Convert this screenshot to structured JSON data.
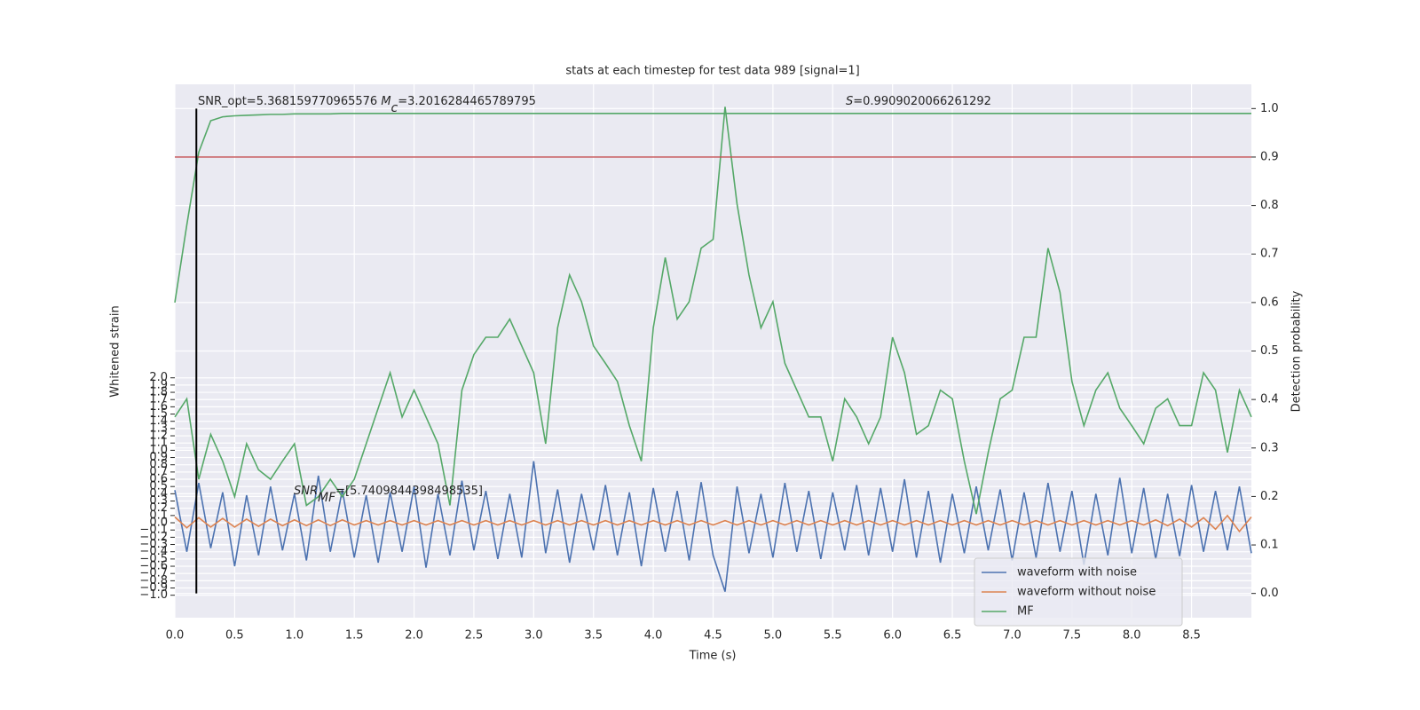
{
  "chart_data": {
    "type": "line",
    "title": "stats at each timestep for test data 989 [signal=1]",
    "x_label": "Time (s)",
    "y_label": "Whitened strain",
    "y2_label": "Detection probability",
    "grid": true,
    "legend": "lower right",
    "xlim": [
      0,
      9.0
    ],
    "ylim": [
      -1.31,
      6.05
    ],
    "y2lim": [
      -0.05,
      1.05
    ],
    "xticks": [
      {
        "value": 0,
        "label": "0.0"
      },
      {
        "value": 0.5,
        "label": "0.5"
      },
      {
        "value": 1,
        "label": "1.0"
      },
      {
        "value": 1.5,
        "label": "1.5"
      },
      {
        "value": 2,
        "label": "2.0"
      },
      {
        "value": 2.5,
        "label": "2.5"
      },
      {
        "value": 3,
        "label": "3.0"
      },
      {
        "value": 3.5,
        "label": "3.5"
      },
      {
        "value": 4,
        "label": "4.0"
      },
      {
        "value": 4.5,
        "label": "4.5"
      },
      {
        "value": 5,
        "label": "5.0"
      },
      {
        "value": 5.5,
        "label": "5.5"
      },
      {
        "value": 6,
        "label": "6.0"
      },
      {
        "value": 6.5,
        "label": "6.5"
      },
      {
        "value": 7,
        "label": "7.0"
      },
      {
        "value": 7.5,
        "label": "7.5"
      },
      {
        "value": 8,
        "label": "8.0"
      },
      {
        "value": 8.5,
        "label": "8.5"
      }
    ],
    "yticks": [
      {
        "value": -1,
        "label": "−1.0"
      },
      {
        "value": -0.9,
        "label": "−0.9"
      },
      {
        "value": -0.8,
        "label": "−0.8"
      },
      {
        "value": -0.7,
        "label": "−0.7"
      },
      {
        "value": -0.6,
        "label": "−0.6"
      },
      {
        "value": -0.5,
        "label": "−0.5"
      },
      {
        "value": -0.4,
        "label": "−0.4"
      },
      {
        "value": -0.3,
        "label": "−0.3"
      },
      {
        "value": -0.2,
        "label": "−0.2"
      },
      {
        "value": -0.1,
        "label": "−0.1"
      },
      {
        "value": 0,
        "label": "0.0"
      },
      {
        "value": 0.1,
        "label": "0.1"
      },
      {
        "value": 0.2,
        "label": "0.2"
      },
      {
        "value": 0.3,
        "label": "0.3"
      },
      {
        "value": 0.4,
        "label": "0.4"
      },
      {
        "value": 0.5,
        "label": "0.5"
      },
      {
        "value": 0.6,
        "label": "0.6"
      },
      {
        "value": 0.7,
        "label": "0.7"
      },
      {
        "value": 0.8,
        "label": "0.8"
      },
      {
        "value": 0.9,
        "label": "0.9"
      },
      {
        "value": 1,
        "label": "1.0"
      },
      {
        "value": 1.1,
        "label": "1.1"
      },
      {
        "value": 1.2,
        "label": "1.2"
      },
      {
        "value": 1.3,
        "label": "1.3"
      },
      {
        "value": 1.4,
        "label": "1.4"
      },
      {
        "value": 1.5,
        "label": "1.5"
      },
      {
        "value": 1.6,
        "label": "1.6"
      },
      {
        "value": 1.7,
        "label": "1.7"
      },
      {
        "value": 1.8,
        "label": "1.8"
      },
      {
        "value": 1.9,
        "label": "1.9"
      },
      {
        "value": 2,
        "label": "2.0"
      }
    ],
    "y2ticks": [
      {
        "value": 0,
        "label": "0.0"
      },
      {
        "value": 0.1,
        "label": "0.1"
      },
      {
        "value": 0.2,
        "label": "0.2"
      },
      {
        "value": 0.3,
        "label": "0.3"
      },
      {
        "value": 0.4,
        "label": "0.4"
      },
      {
        "value": 0.5,
        "label": "0.5"
      },
      {
        "value": 0.6,
        "label": "0.6"
      },
      {
        "value": 0.7,
        "label": "0.7"
      },
      {
        "value": 0.8,
        "label": "0.8"
      },
      {
        "value": 0.9,
        "label": "0.9"
      },
      {
        "value": 1,
        "label": "1.0"
      }
    ],
    "x": [
      0.0,
      0.1,
      0.2,
      0.3,
      0.4,
      0.5,
      0.6,
      0.7,
      0.8,
      0.9,
      1.0,
      1.1,
      1.2,
      1.3,
      1.4,
      1.5,
      1.6,
      1.7,
      1.8,
      1.9,
      2.0,
      2.1,
      2.2,
      2.3,
      2.4,
      2.5,
      2.6,
      2.7,
      2.8,
      2.9,
      3.0,
      3.1,
      3.2,
      3.3,
      3.4,
      3.5,
      3.6,
      3.7,
      3.8,
      3.9,
      4.0,
      4.1,
      4.2,
      4.3,
      4.4,
      4.5,
      4.6,
      4.7,
      4.8,
      4.9,
      5.0,
      5.1,
      5.2,
      5.3,
      5.4,
      5.5,
      5.6,
      5.7,
      5.8,
      5.9,
      6.0,
      6.1,
      6.2,
      6.3,
      6.4,
      6.5,
      6.6,
      6.7,
      6.8,
      6.9,
      7.0,
      7.1,
      7.2,
      7.3,
      7.4,
      7.5,
      7.6,
      7.7,
      7.8,
      7.9,
      8.0,
      8.1,
      8.2,
      8.3,
      8.4,
      8.5,
      8.6,
      8.7,
      8.8,
      8.9,
      9.0
    ],
    "series": [
      {
        "name": "waveform with noise",
        "color": "#4c72b0",
        "values": [
          0.45,
          -0.4,
          0.55,
          -0.35,
          0.42,
          -0.6,
          0.38,
          -0.45,
          0.5,
          -0.38,
          0.4,
          -0.52,
          0.65,
          -0.4,
          0.45,
          -0.48,
          0.38,
          -0.55,
          0.42,
          -0.4,
          0.5,
          -0.62,
          0.4,
          -0.45,
          0.58,
          -0.38,
          0.44,
          -0.5,
          0.4,
          -0.48,
          0.85,
          -0.42,
          0.46,
          -0.55,
          0.4,
          -0.38,
          0.52,
          -0.45,
          0.42,
          -0.6,
          0.48,
          -0.4,
          0.44,
          -0.52,
          0.56,
          -0.45,
          -0.95,
          0.5,
          -0.42,
          0.4,
          -0.48,
          0.55,
          -0.4,
          0.44,
          -0.5,
          0.42,
          -0.38,
          0.52,
          -0.45,
          0.48,
          -0.4,
          0.6,
          -0.48,
          0.44,
          -0.55,
          0.4,
          -0.42,
          0.5,
          -0.38,
          0.46,
          -0.52,
          0.42,
          -0.48,
          0.55,
          -0.4,
          0.44,
          -0.58,
          0.4,
          -0.45,
          0.62,
          -0.42,
          0.48,
          -0.5,
          0.4,
          -0.46,
          0.52,
          -0.4,
          0.44,
          -0.38,
          0.5,
          -0.42
        ]
      },
      {
        "name": "waveform without noise",
        "color": "#dd8452",
        "values": [
          0.08,
          -0.07,
          0.07,
          -0.06,
          0.06,
          -0.06,
          0.05,
          -0.05,
          0.05,
          -0.04,
          0.04,
          -0.04,
          0.04,
          -0.04,
          0.04,
          -0.03,
          0.03,
          -0.03,
          0.03,
          -0.03,
          0.03,
          -0.03,
          0.03,
          -0.03,
          0.03,
          -0.03,
          0.03,
          -0.03,
          0.03,
          -0.03,
          0.03,
          -0.03,
          0.03,
          -0.03,
          0.03,
          -0.03,
          0.03,
          -0.03,
          0.03,
          -0.03,
          0.03,
          -0.03,
          0.03,
          -0.03,
          0.03,
          -0.03,
          0.03,
          -0.03,
          0.03,
          -0.03,
          0.03,
          -0.03,
          0.03,
          -0.03,
          0.03,
          -0.03,
          0.03,
          -0.03,
          0.03,
          -0.03,
          0.03,
          -0.03,
          0.03,
          -0.03,
          0.03,
          -0.03,
          0.03,
          -0.03,
          0.03,
          -0.03,
          0.03,
          -0.03,
          0.03,
          -0.03,
          0.03,
          -0.03,
          0.03,
          -0.03,
          0.03,
          -0.03,
          0.03,
          -0.03,
          0.04,
          -0.04,
          0.05,
          -0.06,
          0.07,
          -0.09,
          0.1,
          -0.12,
          0.08
        ]
      },
      {
        "name": "MF",
        "color": "#55a868",
        "values": [
          1.46,
          1.71,
          0.6,
          1.22,
          0.85,
          0.36,
          1.09,
          0.73,
          0.6,
          0.85,
          1.09,
          0.24,
          0.36,
          0.6,
          0.36,
          0.6,
          1.09,
          1.58,
          2.07,
          1.46,
          1.83,
          1.46,
          1.09,
          0.24,
          1.83,
          2.32,
          2.56,
          2.56,
          2.81,
          2.44,
          2.07,
          1.09,
          2.69,
          3.42,
          3.05,
          2.44,
          2.2,
          1.95,
          1.34,
          0.85,
          2.69,
          3.66,
          2.81,
          3.05,
          3.79,
          3.91,
          5.74,
          4.4,
          3.42,
          2.69,
          3.05,
          2.2,
          1.83,
          1.46,
          1.46,
          0.85,
          1.71,
          1.46,
          1.09,
          1.46,
          2.56,
          2.07,
          1.22,
          1.34,
          1.83,
          1.71,
          0.85,
          0.12,
          0.97,
          1.71,
          1.83,
          2.56,
          2.56,
          3.79,
          3.18,
          1.95,
          1.34,
          1.83,
          2.07,
          1.58,
          1.34,
          1.09,
          1.58,
          1.71,
          1.34,
          1.34,
          2.07,
          1.83,
          0.97,
          1.83,
          1.46
        ]
      },
      {
        "color": "#55a868",
        "axis": "y2",
        "values": [
          0.6,
          0.76,
          0.91,
          0.975,
          0.983,
          0.985,
          0.986,
          0.987,
          0.988,
          0.988,
          0.989,
          0.989,
          0.989,
          0.989,
          0.99,
          0.99,
          0.99,
          0.99,
          0.99,
          0.99,
          0.99,
          0.99,
          0.99,
          0.99,
          0.99,
          0.99,
          0.99,
          0.99,
          0.99,
          0.99,
          0.99,
          0.99,
          0.99,
          0.99,
          0.99,
          0.99,
          0.99,
          0.99,
          0.99,
          0.99,
          0.99,
          0.99,
          0.99,
          0.99,
          0.99,
          0.99,
          0.99,
          0.99,
          0.99,
          0.99,
          0.99,
          0.99,
          0.99,
          0.99,
          0.99,
          0.99,
          0.99,
          0.99,
          0.99,
          0.99,
          0.99,
          0.99,
          0.99,
          0.99,
          0.99,
          0.99,
          0.99,
          0.99,
          0.99,
          0.99,
          0.99,
          0.99,
          0.99,
          0.99,
          0.99,
          0.99,
          0.99,
          0.99,
          0.99,
          0.99,
          0.99,
          0.99,
          0.99,
          0.99,
          0.99,
          0.99,
          0.99,
          0.99,
          0.99,
          0.99,
          0.99
        ]
      }
    ],
    "hline": {
      "value": 0.9,
      "axis": "y2",
      "color": "#c44e52"
    },
    "vline": {
      "value": 0.18,
      "color": "#000000"
    },
    "annotations": [
      {
        "parts": [
          {
            "text": "SNR_opt=5.368159770965576 "
          },
          {
            "text": "M",
            "style": "italic"
          },
          {
            "text": "c",
            "style": "sub"
          },
          {
            "text": "=3.2016284465789795"
          }
        ]
      },
      {
        "parts": [
          {
            "text": "S",
            "style": "italic"
          },
          {
            "text": "=0.9909020066261292"
          }
        ]
      },
      {
        "parts": [
          {
            "text": "SNR",
            "style": "italic"
          },
          {
            "text": "MF",
            "style": "sub"
          },
          {
            "text": "=[5.7409844398498535]"
          }
        ]
      }
    ]
  }
}
